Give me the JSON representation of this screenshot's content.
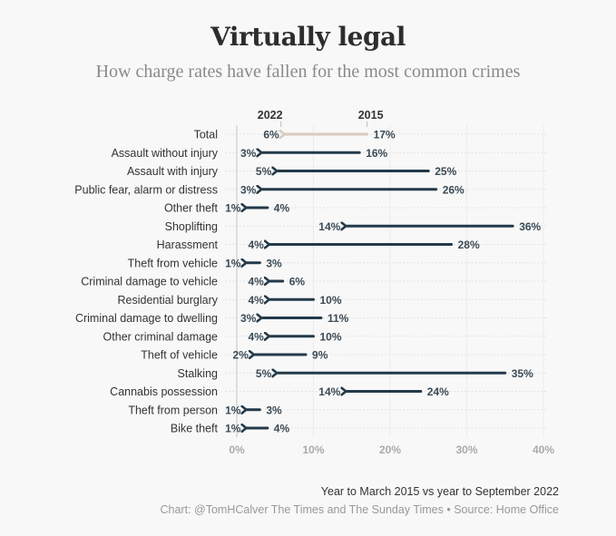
{
  "header": {
    "title": "Virtually legal",
    "subtitle": "How charge rates have fallen for the most common crimes"
  },
  "footer": {
    "note": "Year to March 2015 vs year to September 2022",
    "credit": "Chart: @TomHCalver The Times and The Sunday Times • Source: Home Office"
  },
  "chart_data": {
    "type": "arrow-dumbbell",
    "title": "Virtually legal",
    "subtitle": "How charge rates have fallen for the most common crimes",
    "xlabel": "",
    "ylabel": "",
    "xlim": [
      0,
      40
    ],
    "x_ticks": [
      "0%",
      "10%",
      "20%",
      "30%",
      "40%"
    ],
    "grid": true,
    "start_label": "2015",
    "end_label": "2022",
    "colors": {
      "highlight": "#d9cbbb",
      "arrow": "#233a4a"
    },
    "categories": [
      "Total",
      "Assault without injury",
      "Assault with injury",
      "Public fear, alarm or distress",
      "Other theft",
      "Shoplifting",
      "Harassment",
      "Theft from vehicle",
      "Criminal damage to vehicle",
      "Residential burglary",
      "Criminal damage to dwelling",
      "Other criminal damage",
      "Theft of vehicle",
      "Stalking",
      "Cannabis possession",
      "Theft from person",
      "Bike theft"
    ],
    "series": [
      {
        "name": "2015",
        "values": [
          17,
          16,
          25,
          26,
          4,
          36,
          28,
          3,
          6,
          10,
          11,
          10,
          9,
          35,
          24,
          3,
          4
        ]
      },
      {
        "name": "2022",
        "values": [
          6,
          3,
          5,
          3,
          1,
          14,
          4,
          1,
          4,
          4,
          3,
          4,
          2,
          5,
          14,
          1,
          1
        ]
      }
    ]
  }
}
